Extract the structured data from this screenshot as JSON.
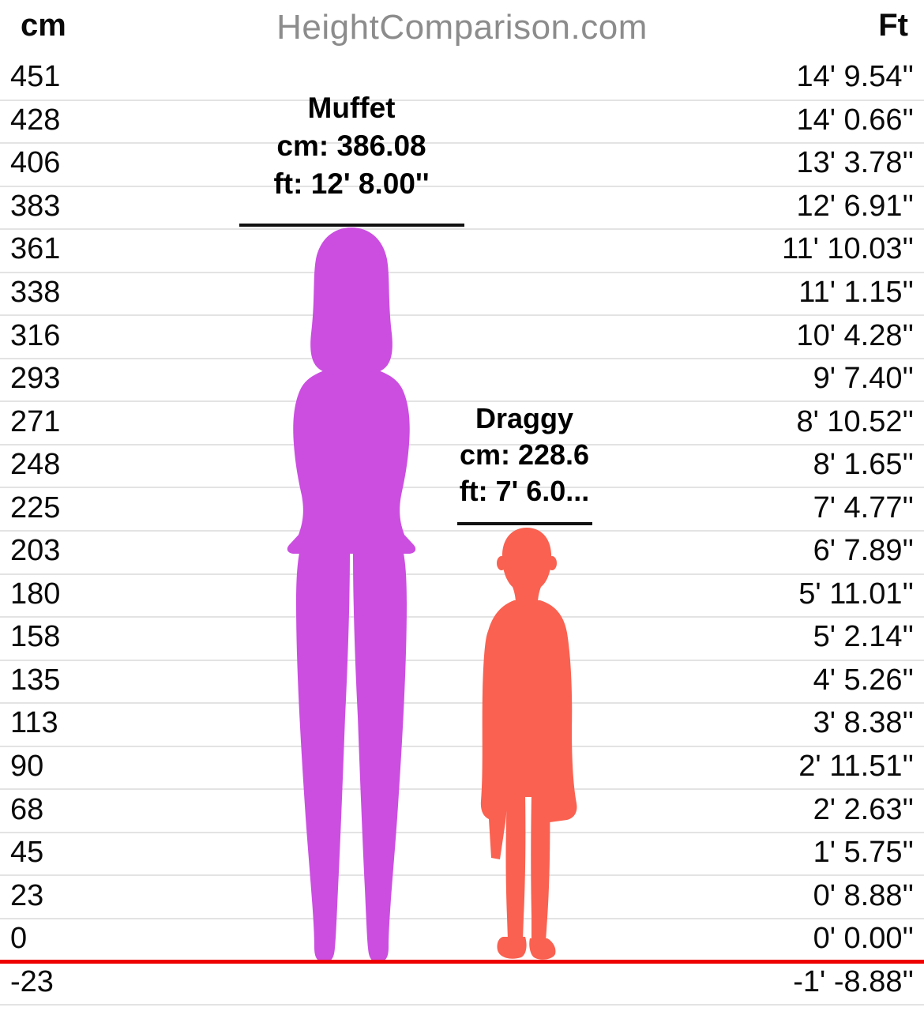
{
  "header": {
    "left_unit": "cm",
    "site_title": "HeightComparison.com",
    "right_unit": "Ft"
  },
  "ruler": {
    "grid_color": "#e3e3e3",
    "ground_line_color": "#ee0000",
    "rows": [
      {
        "cm": "451",
        "ft": "14' 9.54''"
      },
      {
        "cm": "428",
        "ft": "14' 0.66''"
      },
      {
        "cm": "406",
        "ft": "13' 3.78''"
      },
      {
        "cm": "383",
        "ft": "12' 6.91''"
      },
      {
        "cm": "361",
        "ft": "11' 10.03''"
      },
      {
        "cm": "338",
        "ft": "11' 1.15''"
      },
      {
        "cm": "316",
        "ft": "10' 4.28''"
      },
      {
        "cm": "293",
        "ft": "9' 7.40''"
      },
      {
        "cm": "271",
        "ft": "8' 10.52''"
      },
      {
        "cm": "248",
        "ft": "8' 1.65''"
      },
      {
        "cm": "225",
        "ft": "7' 4.77''"
      },
      {
        "cm": "203",
        "ft": "6' 7.89''"
      },
      {
        "cm": "180",
        "ft": "5' 11.01''"
      },
      {
        "cm": "158",
        "ft": "5' 2.14''"
      },
      {
        "cm": "135",
        "ft": "4' 5.26''"
      },
      {
        "cm": "113",
        "ft": "3' 8.38''"
      },
      {
        "cm": "90",
        "ft": "2' 11.51''"
      },
      {
        "cm": "68",
        "ft": "2' 2.63''"
      },
      {
        "cm": "45",
        "ft": "1' 5.75''"
      },
      {
        "cm": "23",
        "ft": "0' 8.88''"
      },
      {
        "cm": "0",
        "ft": "0' 0.00''"
      },
      {
        "cm": "-23",
        "ft": "-1' -8.88''"
      }
    ]
  },
  "figures": [
    {
      "name": "Muffet",
      "cm_text": "cm: 386.08",
      "ft_text": "ft: 12' 8.00''",
      "color": "#cb4ee1",
      "silhouette": "female"
    },
    {
      "name": "Draggy",
      "cm_text": "cm: 228.6",
      "ft_text": "ft: 7' 6.0...",
      "color": "#fa6150",
      "silhouette": "male"
    }
  ],
  "chart_data": {
    "type": "bar",
    "title": "HeightComparison.com",
    "categories": [
      "Muffet",
      "Draggy"
    ],
    "series": [
      {
        "name": "height_cm",
        "values": [
          386.08,
          228.6
        ]
      },
      {
        "name": "height_ft_in",
        "values": [
          "12' 8.00''",
          "7' 6.0..."
        ]
      }
    ],
    "ylabel_left": "cm",
    "ylabel_right": "Ft",
    "ylim": [
      -23,
      451
    ],
    "y_ticks_cm": [
      451,
      428,
      406,
      383,
      361,
      338,
      316,
      293,
      271,
      248,
      225,
      203,
      180,
      158,
      135,
      113,
      90,
      68,
      45,
      23,
      0,
      -23
    ],
    "y_ticks_ft": [
      "14' 9.54''",
      "14' 0.66''",
      "13' 3.78''",
      "12' 6.91''",
      "11' 10.03''",
      "11' 1.15''",
      "10' 4.28''",
      "9' 7.40''",
      "8' 10.52''",
      "8' 1.65''",
      "7' 4.77''",
      "6' 7.89''",
      "5' 11.01''",
      "5' 2.14''",
      "4' 5.26''",
      "3' 8.38''",
      "2' 11.51''",
      "2' 2.63''",
      "1' 5.75''",
      "0' 8.88''",
      "0' 0.00''",
      "-1' -8.88''"
    ],
    "grid": true,
    "ground_line_cm": 0,
    "bar_colors": [
      "#cb4ee1",
      "#fa6150"
    ],
    "legend_position": "none"
  }
}
